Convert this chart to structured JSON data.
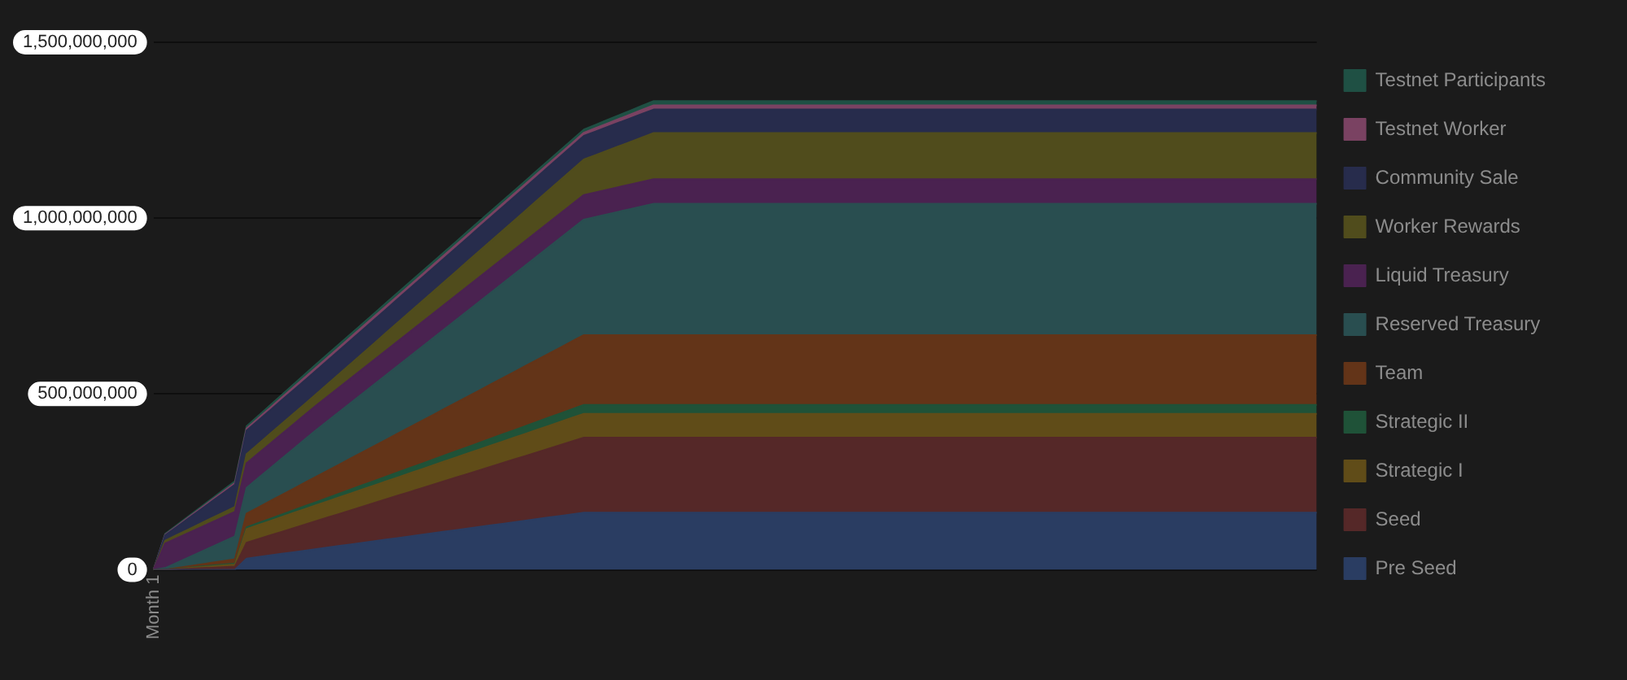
{
  "chart_data": {
    "type": "area",
    "stacked": true,
    "categories": [
      "Month 1",
      null,
      null,
      null,
      null,
      null,
      null,
      null,
      null,
      null,
      null,
      null,
      null,
      null,
      null,
      null,
      null,
      null,
      null,
      null,
      null,
      null,
      null,
      null,
      null,
      null,
      null,
      null,
      null,
      null,
      null,
      null,
      null,
      null,
      null,
      null,
      null,
      null,
      null,
      null,
      null,
      null,
      null,
      null,
      null,
      null,
      null,
      null,
      null,
      null,
      null,
      null,
      null,
      null,
      null,
      null,
      null,
      null,
      null,
      null,
      null,
      null,
      null,
      null,
      null,
      null,
      null,
      null,
      null,
      null,
      null,
      null,
      null,
      null,
      null,
      null,
      null,
      null,
      null,
      null,
      null,
      null,
      null,
      null,
      null,
      null,
      null,
      null,
      null,
      null,
      null,
      null,
      null,
      null,
      null,
      null,
      null,
      null,
      null,
      null,
      null
    ],
    "ylim": [
      0,
      1500000000
    ],
    "yticks": [
      {
        "value": 0,
        "label": "0"
      },
      {
        "value": 500000000,
        "label": "500,000,000"
      },
      {
        "value": 1000000000,
        "label": "1,000,000,000"
      },
      {
        "value": 1500000000,
        "label": "1,500,000,000"
      }
    ],
    "grid": "y",
    "legend": "right",
    "series": [
      {
        "name": "Pre Seed",
        "color": "#2a3d62",
        "values": [
          0,
          0,
          0,
          0,
          0,
          0,
          0,
          0,
          32000000.0,
          36500000.0,
          41000000.0,
          45500000.0,
          50000000.0,
          54500000.0,
          59000000.0,
          63500000.0,
          68000000.0,
          72500000.0,
          77000000.0,
          81500000.0,
          86000000.0,
          90500000.0,
          95000000.0,
          99500000.0,
          104000000.0,
          108500000.0,
          113000000.0,
          117500000.0,
          122000000.0,
          126500000.0,
          131000000.0,
          135500000.0,
          140000000.0,
          144500000.0,
          149000000.0,
          153500000.0,
          158000000.0,
          162500000.0,
          162500000.0,
          162500000.0,
          162500000.0,
          162500000.0,
          162500000.0,
          162500000.0,
          162500000.0,
          162500000.0,
          162500000.0,
          162500000.0,
          162500000.0,
          162500000.0,
          162500000.0,
          162500000.0,
          162500000.0,
          162500000.0,
          162500000.0,
          162500000.0,
          162500000.0,
          162500000.0,
          162500000.0,
          162500000.0,
          162500000.0,
          162500000.0,
          162500000.0,
          162500000.0,
          162500000.0,
          162500000.0,
          162500000.0,
          162500000.0,
          162500000.0,
          162500000.0,
          162500000.0,
          162500000.0,
          162500000.0,
          162500000.0,
          162500000.0,
          162500000.0,
          162500000.0,
          162500000.0,
          162500000.0,
          162500000.0,
          162500000.0,
          162500000.0,
          162500000.0,
          162500000.0,
          162500000.0,
          162500000.0,
          162500000.0,
          162500000.0,
          162500000.0,
          162500000.0,
          162500000.0,
          162500000.0,
          162500000.0,
          162500000.0,
          162500000.0,
          162500000.0,
          162500000.0,
          162500000.0,
          162500000.0,
          162500000.0,
          162500000.0
        ]
      },
      {
        "name": "Seed",
        "color": "#552828",
        "values": [
          0,
          0,
          1500000.0,
          3000000.0,
          4500000.0,
          6000000.0,
          7500000.0,
          9000000.0,
          45000000.0,
          50800000.0,
          56600000.0,
          62400000.0,
          68200000.0,
          74000000.0,
          79800000.0,
          85600000.0,
          91400000.0,
          97200000.0,
          103000000.0,
          108800000.0,
          114600000.0,
          120400000.0,
          126200000.0,
          132000000.0,
          137800000.0,
          143600000.0,
          149400000.0,
          155200000.0,
          161000000.0,
          166800000.0,
          172600000.0,
          178400000.0,
          184200000.0,
          190000000.0,
          195800000.0,
          201600000.0,
          207400000.0,
          213200000.0,
          213200000.0,
          213200000.0,
          213200000.0,
          213200000.0,
          213200000.0,
          213200000.0,
          213200000.0,
          213200000.0,
          213200000.0,
          213200000.0,
          213200000.0,
          213200000.0,
          213200000.0,
          213200000.0,
          213200000.0,
          213200000.0,
          213200000.0,
          213200000.0,
          213200000.0,
          213200000.0,
          213200000.0,
          213200000.0,
          213200000.0,
          213200000.0,
          213200000.0,
          213200000.0,
          213200000.0,
          213200000.0,
          213200000.0,
          213200000.0,
          213200000.0,
          213200000.0,
          213200000.0,
          213200000.0,
          213200000.0,
          213200000.0,
          213200000.0,
          213200000.0,
          213200000.0,
          213200000.0,
          213200000.0,
          213200000.0,
          213200000.0,
          213200000.0,
          213200000.0,
          213200000.0,
          213200000.0,
          213200000.0,
          213200000.0,
          213200000.0,
          213200000.0,
          213200000.0,
          213200000.0,
          213200000.0,
          213200000.0,
          213200000.0,
          213200000.0,
          213200000.0,
          213200000.0,
          213200000.0,
          213200000.0,
          213200000.0,
          213200000.0
        ]
      },
      {
        "name": "Strategic I",
        "color": "#604c18",
        "values": [
          0,
          0,
          1000000.0,
          2000000.0,
          3000000.0,
          4000000.0,
          5000000.0,
          6000000.0,
          39000000.0,
          40000000.0,
          41000000.0,
          42000000.0,
          43000000.0,
          44000000.0,
          45000000.0,
          46000000.0,
          47000000.0,
          48000000.0,
          49000000.0,
          50000000.0,
          51000000.0,
          52000000.0,
          53000000.0,
          54000000.0,
          55000000.0,
          56000000.0,
          57000000.0,
          58000000.0,
          59000000.0,
          60000000.0,
          61000000.0,
          62000000.0,
          63000000.0,
          64000000.0,
          65000000.0,
          66000000.0,
          67000000.0,
          68000000.0,
          68000000.0,
          68000000.0,
          68000000.0,
          68000000.0,
          68000000.0,
          68000000.0,
          68000000.0,
          68000000.0,
          68000000.0,
          68000000.0,
          68000000.0,
          68000000.0,
          68000000.0,
          68000000.0,
          68000000.0,
          68000000.0,
          68000000.0,
          68000000.0,
          68000000.0,
          68000000.0,
          68000000.0,
          68000000.0,
          68000000.0,
          68000000.0,
          68000000.0,
          68000000.0,
          68000000.0,
          68000000.0,
          68000000.0,
          68000000.0,
          68000000.0,
          68000000.0,
          68000000.0,
          68000000.0,
          68000000.0,
          68000000.0,
          68000000.0,
          68000000.0,
          68000000.0,
          68000000.0,
          68000000.0,
          68000000.0,
          68000000.0,
          68000000.0,
          68000000.0,
          68000000.0,
          68000000.0,
          68000000.0,
          68000000.0,
          68000000.0,
          68000000.0,
          68000000.0,
          68000000.0,
          68000000.0,
          68000000.0,
          68000000.0,
          68000000.0,
          68000000.0,
          68000000.0,
          68000000.0,
          68000000.0,
          68000000.0,
          68000000.0
        ]
      },
      {
        "name": "Strategic II",
        "color": "#1f5238",
        "values": [
          0,
          0,
          500000.0,
          1000000.0,
          1500000.0,
          2000000.0,
          2500000.0,
          3000000.0,
          5000000.0,
          5700000.0,
          6400000.0,
          7100000.0,
          7800000.0,
          8500000.0,
          9200000.0,
          9900000.0,
          10600000.0,
          11300000.0,
          12000000.0,
          12700000.0,
          13400000.0,
          14100000.0,
          14800000.0,
          15500000.0,
          16200000.0,
          16900000.0,
          17600000.0,
          18300000.0,
          19000000.0,
          19700000.0,
          20400000.0,
          21100000.0,
          21800000.0,
          22500000.0,
          23200000.0,
          23900000.0,
          24600000.0,
          25300000.0,
          25300000.0,
          25300000.0,
          25300000.0,
          25300000.0,
          25300000.0,
          25300000.0,
          25300000.0,
          25300000.0,
          25300000.0,
          25300000.0,
          25300000.0,
          25300000.0,
          25300000.0,
          25300000.0,
          25300000.0,
          25300000.0,
          25300000.0,
          25300000.0,
          25300000.0,
          25300000.0,
          25300000.0,
          25300000.0,
          25300000.0,
          25300000.0,
          25300000.0,
          25300000.0,
          25300000.0,
          25300000.0,
          25300000.0,
          25300000.0,
          25300000.0,
          25300000.0,
          25300000.0,
          25300000.0,
          25300000.0,
          25300000.0,
          25300000.0,
          25300000.0,
          25300000.0,
          25300000.0,
          25300000.0,
          25300000.0,
          25300000.0,
          25300000.0,
          25300000.0,
          25300000.0,
          25300000.0,
          25300000.0,
          25300000.0,
          25300000.0,
          25300000.0,
          25300000.0,
          25300000.0,
          25300000.0,
          25300000.0,
          25300000.0,
          25300000.0,
          25300000.0,
          25300000.0,
          25300000.0,
          25300000.0,
          25300000.0,
          25300000.0
        ]
      },
      {
        "name": "Team",
        "color": "#633418",
        "values": [
          0,
          0,
          2000000.0,
          4000000.0,
          6000000.0,
          8000000.0,
          10000000.0,
          12000000.0,
          39000000.0,
          44500000.0,
          50000000.0,
          55500000.0,
          61000000.0,
          66500000.0,
          72000000.0,
          77500000.0,
          83000000.0,
          88500000.0,
          94000000.0,
          99500000.0,
          105000000.0,
          110500000.0,
          116000000.0,
          121500000.0,
          127000000.0,
          132500000.0,
          138000000.0,
          143500000.0,
          149000000.0,
          154500000.0,
          160000000.0,
          165500000.0,
          171000000.0,
          176500000.0,
          182000000.0,
          187500000.0,
          193000000.0,
          198500000.0,
          198500000.0,
          198500000.0,
          198500000.0,
          198500000.0,
          198500000.0,
          198500000.0,
          198500000.0,
          198500000.0,
          198500000.0,
          198500000.0,
          198500000.0,
          198500000.0,
          198500000.0,
          198500000.0,
          198500000.0,
          198500000.0,
          198500000.0,
          198500000.0,
          198500000.0,
          198500000.0,
          198500000.0,
          198500000.0,
          198500000.0,
          198500000.0,
          198500000.0,
          198500000.0,
          198500000.0,
          198500000.0,
          198500000.0,
          198500000.0,
          198500000.0,
          198500000.0,
          198500000.0,
          198500000.0,
          198500000.0,
          198500000.0,
          198500000.0,
          198500000.0,
          198500000.0,
          198500000.0,
          198500000.0,
          198500000.0,
          198500000.0,
          198500000.0,
          198500000.0,
          198500000.0,
          198500000.0,
          198500000.0,
          198500000.0,
          198500000.0,
          198500000.0,
          198500000.0,
          198500000.0,
          198500000.0,
          198500000.0,
          198500000.0,
          198500000.0,
          198500000.0,
          198500000.0,
          198500000.0,
          198500000.0,
          198500000.0,
          198500000.0
        ]
      },
      {
        "name": "Reserved Treasury",
        "color": "#294e50",
        "values": [
          0,
          5000000.0,
          15000000.0,
          25000000.0,
          35000000.0,
          45000000.0,
          55000000.0,
          65000000.0,
          73000000.0,
          83000000.0,
          93000000.0,
          103000000.0,
          113000000.0,
          123000000.0,
          133000000.0,
          141500000.0,
          150000000.0,
          158500000.0,
          167000000.0,
          175500000.0,
          184000000.0,
          192500000.0,
          201000000.0,
          209500000.0,
          218000000.0,
          226500000.0,
          235000000.0,
          243500000.0,
          252000000.0,
          260500000.0,
          269000000.0,
          277500000.0,
          286000000.0,
          294500000.0,
          303000000.0,
          311500000.0,
          320000000.0,
          328500000.0,
          336000000.0,
          343500000.0,
          351000000.0,
          358500000.0,
          366000000.0,
          373500000.0,
          373500000.0,
          373500000.0,
          373500000.0,
          373500000.0,
          373500000.0,
          373500000.0,
          373500000.0,
          373500000.0,
          373500000.0,
          373500000.0,
          373500000.0,
          373500000.0,
          373500000.0,
          373500000.0,
          373500000.0,
          373500000.0,
          373500000.0,
          373500000.0,
          373500000.0,
          373500000.0,
          373500000.0,
          373500000.0,
          373500000.0,
          373500000.0,
          373500000.0,
          373500000.0,
          373500000.0,
          373500000.0,
          373500000.0,
          373500000.0,
          373500000.0,
          373500000.0,
          373500000.0,
          373500000.0,
          373500000.0,
          373500000.0,
          373500000.0,
          373500000.0,
          373500000.0,
          373500000.0,
          373500000.0,
          373500000.0,
          373500000.0,
          373500000.0,
          373500000.0,
          373500000.0,
          373500000.0,
          373500000.0,
          373500000.0,
          373500000.0,
          373500000.0,
          373500000.0,
          373500000.0,
          373500000.0,
          373500000.0,
          373500000.0,
          373500000.0
        ]
      },
      {
        "name": "Liquid Treasury",
        "color": "#4a2250",
        "values": [
          0,
          70000000.0,
          70000000.0,
          70000000.0,
          70000000.0,
          70000000.0,
          70000000.0,
          70000000.0,
          70000000.0,
          70000000.0,
          70000000.0,
          70000000.0,
          70000000.0,
          70000000.0,
          70000000.0,
          70000000.0,
          70000000.0,
          70000000.0,
          70000000.0,
          70000000.0,
          70000000.0,
          70000000.0,
          70000000.0,
          70000000.0,
          70000000.0,
          70000000.0,
          70000000.0,
          70000000.0,
          70000000.0,
          70000000.0,
          70000000.0,
          70000000.0,
          70000000.0,
          70000000.0,
          70000000.0,
          70000000.0,
          70000000.0,
          70000000.0,
          70000000.0,
          70000000.0,
          70000000.0,
          70000000.0,
          70000000.0,
          70000000.0,
          70000000.0,
          70000000.0,
          70000000.0,
          70000000.0,
          70000000.0,
          70000000.0,
          70000000.0,
          70000000.0,
          70000000.0,
          70000000.0,
          70000000.0,
          70000000.0,
          70000000.0,
          70000000.0,
          70000000.0,
          70000000.0,
          70000000.0,
          70000000.0,
          70000000.0,
          70000000.0,
          70000000.0,
          70000000.0,
          70000000.0,
          70000000.0,
          70000000.0,
          70000000.0,
          70000000.0,
          70000000.0,
          70000000.0,
          70000000.0,
          70000000.0,
          70000000.0,
          70000000.0,
          70000000.0,
          70000000.0,
          70000000.0,
          70000000.0,
          70000000.0,
          70000000.0,
          70000000.0,
          70000000.0,
          70000000.0,
          70000000.0,
          70000000.0,
          70000000.0,
          70000000.0,
          70000000.0,
          70000000.0,
          70000000.0,
          70000000.0,
          70000000.0,
          70000000.0,
          70000000.0,
          70000000.0,
          70000000.0,
          70000000.0,
          70000000.0
        ]
      },
      {
        "name": "Worker Rewards",
        "color": "#504c1c",
        "values": [
          0,
          8000000.0,
          9000000.0,
          10000000.0,
          11000000.0,
          12000000.0,
          13000000.0,
          14000000.0,
          26000000.0,
          27000000.0,
          28000000.0,
          29000000.0,
          30000000.0,
          31000000.0,
          32000000.0,
          35000000.0,
          38000000.0,
          41000000.0,
          44000000.0,
          47000000.0,
          50000000.0,
          53000000.0,
          56000000.0,
          59000000.0,
          62000000.0,
          65000000.0,
          68000000.0,
          71000000.0,
          74000000.0,
          77000000.0,
          80000000.0,
          83000000.0,
          86000000.0,
          89000000.0,
          92000000.0,
          95000000.0,
          98000000.0,
          101000000.0,
          106000000.0,
          111000000.0,
          116000000.0,
          121000000.0,
          126000000.0,
          131000000.0,
          131000000.0,
          131000000.0,
          131000000.0,
          131000000.0,
          131000000.0,
          131000000.0,
          131000000.0,
          131000000.0,
          131000000.0,
          131000000.0,
          131000000.0,
          131000000.0,
          131000000.0,
          131000000.0,
          131000000.0,
          131000000.0,
          131000000.0,
          131000000.0,
          131000000.0,
          131000000.0,
          131000000.0,
          131000000.0,
          131000000.0,
          131000000.0,
          131000000.0,
          131000000.0,
          131000000.0,
          131000000.0,
          131000000.0,
          131000000.0,
          131000000.0,
          131000000.0,
          131000000.0,
          131000000.0,
          131000000.0,
          131000000.0,
          131000000.0,
          131000000.0,
          131000000.0,
          131000000.0,
          131000000.0,
          131000000.0,
          131000000.0,
          131000000.0,
          131000000.0,
          131000000.0,
          131000000.0,
          131000000.0,
          131000000.0,
          131000000.0,
          131000000.0,
          131000000.0,
          131000000.0,
          131000000.0,
          131000000.0,
          131000000.0,
          131000000.0
        ]
      },
      {
        "name": "Community Sale",
        "color": "#272c4c",
        "values": [
          0,
          15000000.0,
          23000000.0,
          31000000.0,
          39000000.0,
          47000000.0,
          55000000.0,
          63000000.0,
          67000000.0,
          67000000.0,
          67000000.0,
          67000000.0,
          67000000.0,
          67000000.0,
          67000000.0,
          67000000.0,
          67000000.0,
          67000000.0,
          67000000.0,
          67000000.0,
          67000000.0,
          67000000.0,
          67000000.0,
          67000000.0,
          67000000.0,
          67000000.0,
          67000000.0,
          67000000.0,
          67000000.0,
          67000000.0,
          67000000.0,
          67000000.0,
          67000000.0,
          67000000.0,
          67000000.0,
          67000000.0,
          67000000.0,
          67000000.0,
          67000000.0,
          67000000.0,
          67000000.0,
          67000000.0,
          67000000.0,
          67000000.0,
          67000000.0,
          67000000.0,
          67000000.0,
          67000000.0,
          67000000.0,
          67000000.0,
          67000000.0,
          67000000.0,
          67000000.0,
          67000000.0,
          67000000.0,
          67000000.0,
          67000000.0,
          67000000.0,
          67000000.0,
          67000000.0,
          67000000.0,
          67000000.0,
          67000000.0,
          67000000.0,
          67000000.0,
          67000000.0,
          67000000.0,
          67000000.0,
          67000000.0,
          67000000.0,
          67000000.0,
          67000000.0,
          67000000.0,
          67000000.0,
          67000000.0,
          67000000.0,
          67000000.0,
          67000000.0,
          67000000.0,
          67000000.0,
          67000000.0,
          67000000.0,
          67000000.0,
          67000000.0,
          67000000.0,
          67000000.0,
          67000000.0,
          67000000.0,
          67000000.0,
          67000000.0,
          67000000.0,
          67000000.0,
          67000000.0,
          67000000.0,
          67000000.0,
          67000000.0,
          67000000.0,
          67000000.0,
          67000000.0,
          67000000.0,
          67000000.0
        ]
      },
      {
        "name": "Testnet Worker",
        "color": "#7a4262",
        "values": [
          0,
          2000000.0,
          2500000.0,
          3000000.0,
          3500000.0,
          4000000.0,
          4500000.0,
          5000000.0,
          6000000.0,
          6500000.0,
          7000000.0,
          7500000.0,
          8000000.0,
          8500000.0,
          9000000.0,
          9000000.0,
          9000000.0,
          9000000.0,
          9000000.0,
          9000000.0,
          9000000.0,
          9000000.0,
          9000000.0,
          9000000.0,
          9000000.0,
          9000000.0,
          9000000.0,
          9000000.0,
          9000000.0,
          9000000.0,
          9000000.0,
          9000000.0,
          9000000.0,
          9000000.0,
          9000000.0,
          9000000.0,
          9000000.0,
          9000000.0,
          9500000.0,
          10000000.0,
          10500000.0,
          11000000.0,
          11500000.0,
          12000000.0,
          12000000.0,
          12000000.0,
          12000000.0,
          12000000.0,
          12000000.0,
          12000000.0,
          12000000.0,
          12000000.0,
          12000000.0,
          12000000.0,
          12000000.0,
          12000000.0,
          12000000.0,
          12000000.0,
          12000000.0,
          12000000.0,
          12000000.0,
          12000000.0,
          12000000.0,
          12000000.0,
          12000000.0,
          12000000.0,
          12000000.0,
          12000000.0,
          12000000.0,
          12000000.0,
          12000000.0,
          12000000.0,
          12000000.0,
          12000000.0,
          12000000.0,
          12000000.0,
          12000000.0,
          12000000.0,
          12000000.0,
          12000000.0,
          12000000.0,
          12000000.0,
          12000000.0,
          12000000.0,
          12000000.0,
          12000000.0,
          12000000.0,
          12000000.0,
          12000000.0,
          12000000.0,
          12000000.0,
          12000000.0,
          12000000.0,
          12000000.0,
          12000000.0,
          12000000.0,
          12000000.0,
          12000000.0,
          12000000.0,
          12000000.0,
          12000000.0
        ]
      },
      {
        "name": "Testnet Participants",
        "color": "#1f5044",
        "values": [
          0,
          2000000.0,
          2500000.0,
          3000000.0,
          3500000.0,
          4000000.0,
          4500000.0,
          5000000.0,
          6000000.0,
          6500000.0,
          7000000.0,
          7500000.0,
          8000000.0,
          8500000.0,
          9000000.0,
          9000000.0,
          9000000.0,
          9000000.0,
          9000000.0,
          9000000.0,
          9000000.0,
          9000000.0,
          9000000.0,
          9000000.0,
          9000000.0,
          9000000.0,
          9000000.0,
          9000000.0,
          9000000.0,
          9000000.0,
          9000000.0,
          9000000.0,
          9000000.0,
          9000000.0,
          9000000.0,
          9000000.0,
          9000000.0,
          9000000.0,
          9500000.0,
          10000000.0,
          10500000.0,
          11000000.0,
          11500000.0,
          12000000.0,
          12000000.0,
          12000000.0,
          12000000.0,
          12000000.0,
          12000000.0,
          12000000.0,
          12000000.0,
          12000000.0,
          12000000.0,
          12000000.0,
          12000000.0,
          12000000.0,
          12000000.0,
          12000000.0,
          12000000.0,
          12000000.0,
          12000000.0,
          12000000.0,
          12000000.0,
          12000000.0,
          12000000.0,
          12000000.0,
          12000000.0,
          12000000.0,
          12000000.0,
          12000000.0,
          12000000.0,
          12000000.0,
          12000000.0,
          12000000.0,
          12000000.0,
          12000000.0,
          12000000.0,
          12000000.0,
          12000000.0,
          12000000.0,
          12000000.0,
          12000000.0,
          12000000.0,
          12000000.0,
          12000000.0,
          12000000.0,
          12000000.0,
          12000000.0,
          12000000.0,
          12000000.0,
          12000000.0,
          12000000.0,
          12000000.0,
          12000000.0,
          12000000.0,
          12000000.0,
          12000000.0,
          12000000.0,
          12000000.0,
          12000000.0,
          12000000.0
        ]
      }
    ]
  }
}
